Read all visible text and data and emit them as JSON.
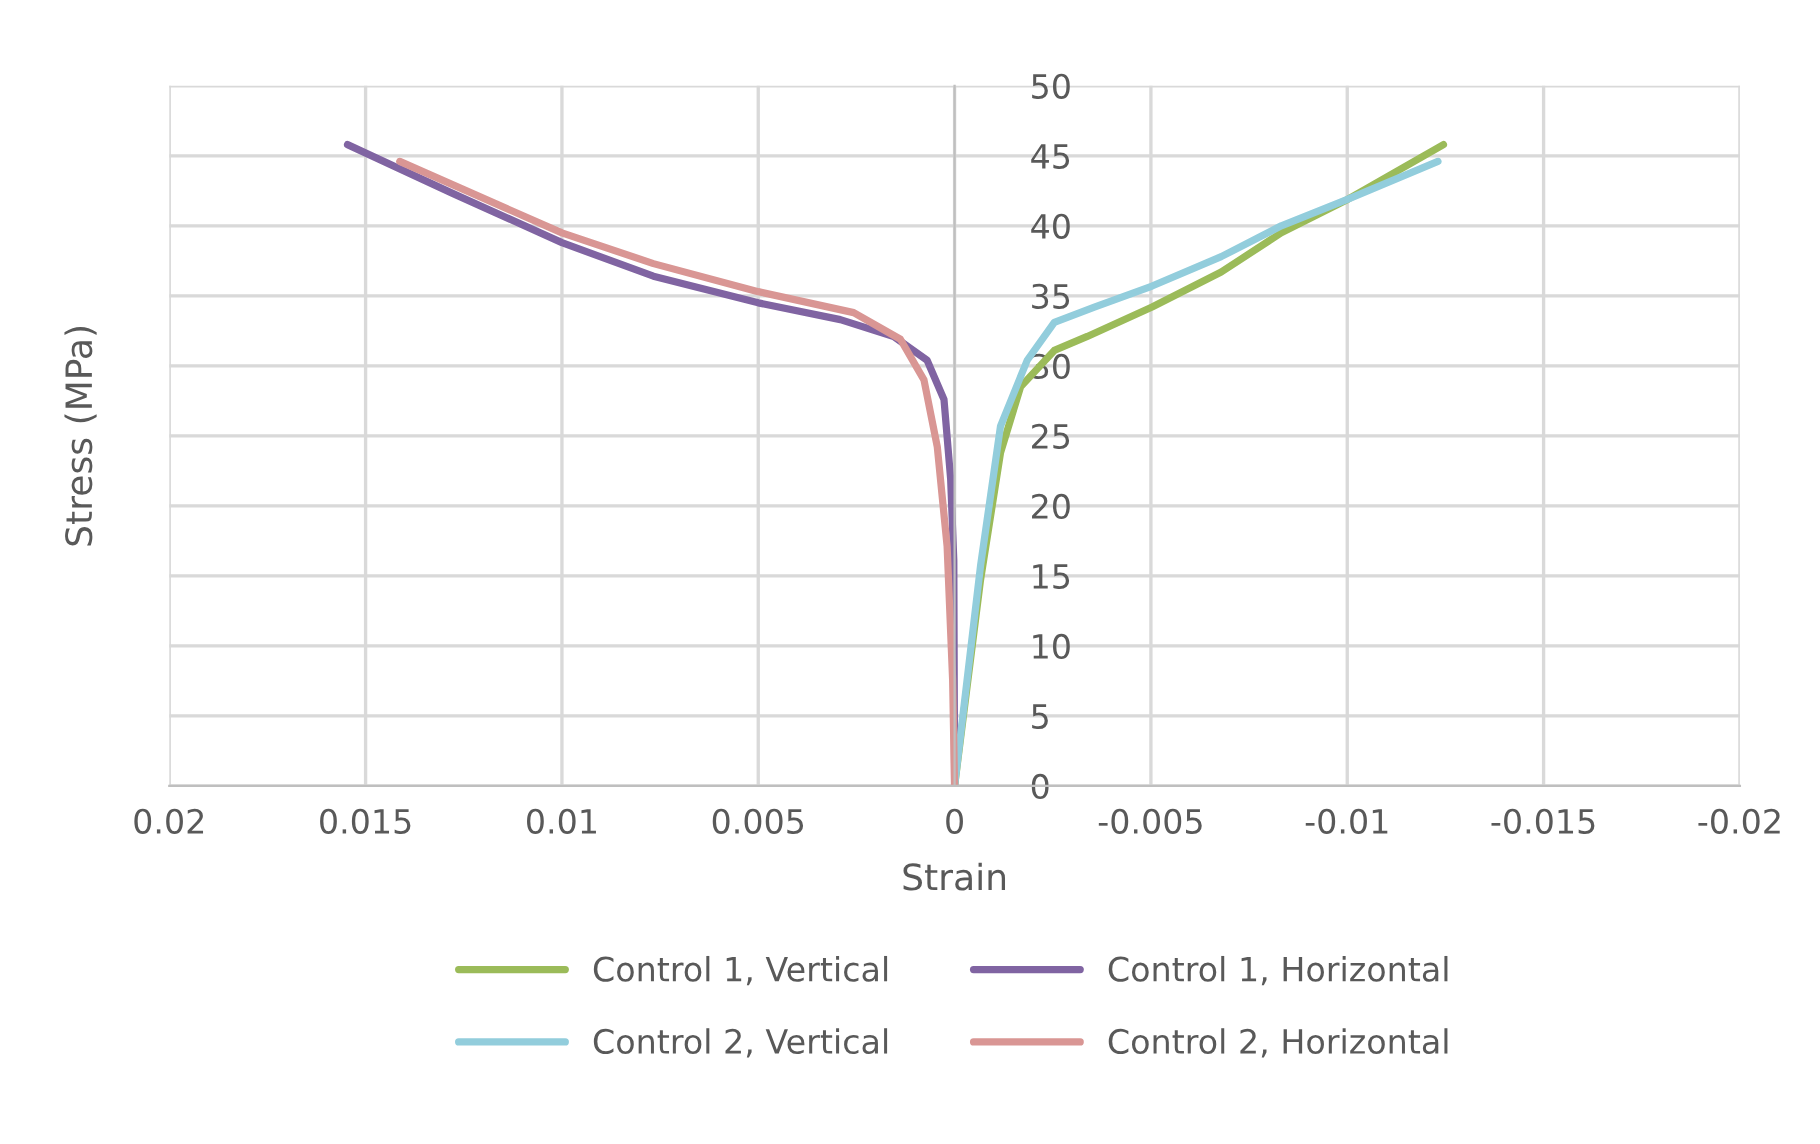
{
  "chart_data": {
    "type": "line",
    "xlabel": "Strain",
    "ylabel": "Stress (MPa)",
    "xlim": [
      0.02,
      -0.02
    ],
    "xticks": [
      0.02,
      0.015,
      0.01,
      0.005,
      0,
      -0.005,
      -0.01,
      -0.015,
      -0.02
    ],
    "ylim": [
      0,
      50
    ],
    "yticks": [
      0,
      5,
      10,
      15,
      20,
      25,
      30,
      35,
      40,
      45,
      50
    ],
    "grid": true,
    "legend": "bottom",
    "marker": "none",
    "line_style": "solid",
    "series": [
      {
        "name": "Control 1, Vertical",
        "color": "#9bbb59",
        "x": [
          0,
          -0.00066,
          -0.00117,
          -0.00168,
          -0.00254,
          -0.00338,
          -0.00503,
          -0.00679,
          -0.00832,
          -0.01002,
          -0.01245
        ],
        "values": [
          0,
          14.7,
          23.8,
          28.5,
          31.1,
          32.1,
          34.2,
          36.7,
          39.5,
          41.9,
          45.8
        ]
      },
      {
        "name": "Control 1, Horizontal",
        "color": "#8064a2",
        "x": [
          0,
          2e-05,
          0.0001,
          0.00027,
          0.0007,
          0.00155,
          0.00291,
          0.005,
          0.00767,
          0.01,
          0.01277,
          0.01546
        ],
        "values": [
          0,
          16.1,
          21.9,
          27.6,
          30.4,
          32.1,
          33.3,
          34.5,
          36.4,
          38.8,
          42.3,
          45.8
        ]
      },
      {
        "name": "Control 2, Vertical",
        "color": "#92cddc",
        "x": [
          0,
          -0.00066,
          -0.00117,
          -0.00185,
          -0.00254,
          -0.00356,
          -0.00503,
          -0.00679,
          -0.00832,
          -0.01002,
          -0.01231
        ],
        "values": [
          0,
          15.7,
          25.7,
          30.4,
          33.1,
          34.2,
          35.7,
          37.8,
          40.0,
          41.9,
          44.6
        ]
      },
      {
        "name": "Control 2, Horizontal",
        "color": "#d99694",
        "x": [
          0,
          5e-05,
          0.00019,
          0.00044,
          0.00078,
          0.00138,
          0.00257,
          0.005,
          0.00767,
          0.01,
          0.01413
        ],
        "values": [
          0,
          7.6,
          17.1,
          24.2,
          29.0,
          31.9,
          33.8,
          35.3,
          37.3,
          39.5,
          44.6
        ]
      }
    ]
  }
}
